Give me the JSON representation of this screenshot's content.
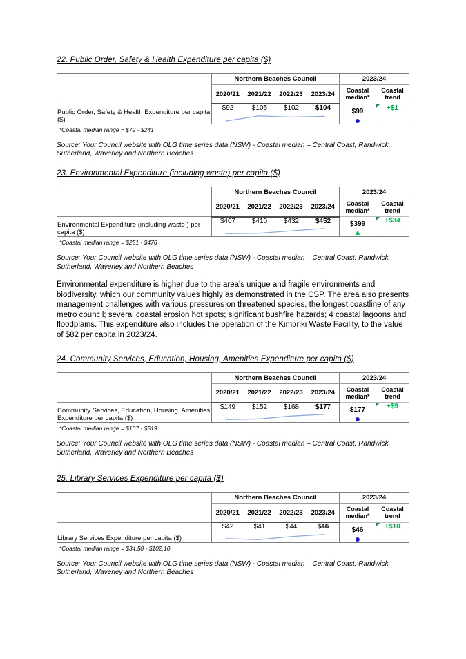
{
  "colors": {
    "sparkline": "#8ea9db",
    "trend_green": "#00b050",
    "median_blue": "#1414e8",
    "marker_green": "#00c050"
  },
  "shared": {
    "council_header": "Northern Beaches Council",
    "fy_header": "2023/24",
    "years": [
      "2020/21",
      "2021/22",
      "2022/23",
      "2023/24"
    ],
    "median_header": "Coastal median*",
    "trend_header": "Coastal trend",
    "source": "Source: Your Council website with OLG time series data (NSW) - Coastal median – Central Coast, Randwick, Sutherland, Waverley and Northern Beaches"
  },
  "sections": [
    {
      "title": "22. Public Order, Safety & Health Expenditure per capita ($)",
      "table": {
        "row_label": "Public Order, Safety & Health Expenditure per capita ($)",
        "values": [
          "$92",
          "$105",
          "$102",
          "$104"
        ],
        "spark": [
          92,
          105,
          102,
          104
        ],
        "median": "$99",
        "marker_glyph": "●",
        "marker_style": "color:#1414e8;font-size:14px;line-height:10px;",
        "trend": "+$1"
      },
      "footnote": "*Coastal median range = $72 - $241"
    },
    {
      "title": "23. Environmental Expenditure (including waste) per capita ($)",
      "table": {
        "row_label": "Environmental Expenditure (including waste ) per capita ($)",
        "values": [
          "$407",
          "$410",
          "$432",
          "$452"
        ],
        "spark": [
          407,
          410,
          432,
          452
        ],
        "median": "$399",
        "marker_glyph": "▲",
        "marker_style": "color:#00c050;font-size:11px;line-height:10px;",
        "trend": "+$34"
      },
      "footnote": "*Coastal median range = $251 - $476"
    },
    {
      "title": "24. Community Services, Education, Housing, Amenities Expenditure per capita ($)",
      "table": {
        "row_label": "Community Services, Education, Housing, Amenities Expenditure per capita ($)",
        "values": [
          "$149",
          "$152",
          "$168",
          "$177"
        ],
        "spark": [
          149,
          152,
          168,
          177
        ],
        "median": "$177",
        "marker_glyph": "●",
        "marker_style": "color:#1414e8;font-size:14px;line-height:10px;",
        "trend": "+$9"
      },
      "footnote": "*Coastal median range = $107 - $519"
    },
    {
      "title": "25. Library Services Expenditure per capita ($)",
      "table": {
        "row_label": "Library Services Expenditure per capita ($)",
        "values": [
          "$42",
          "$41",
          "$44",
          "$46"
        ],
        "spark": [
          42,
          41,
          44,
          46
        ],
        "median": "$46",
        "marker_glyph": "●",
        "marker_style": "color:#1414e8;font-size:14px;line-height:10px;",
        "trend": "+$10"
      },
      "footnote": "*Coastal median range = $34.50 - $102.10"
    }
  ],
  "paragraph": "Environmental expenditure is higher due to the area's unique and fragile environments and biodiversity, which our community values highly as demonstrated in the CSP. The area also presents management challenges with various pressures on threatened species, the longest coastline of any metro council; several coastal erosion hot spots; significant bushfire hazards; 4 coastal lagoons and floodplains. This expenditure also includes the operation of the Kimbriki Waste Facility, to the value of $82 per capita in 2023/24."
}
